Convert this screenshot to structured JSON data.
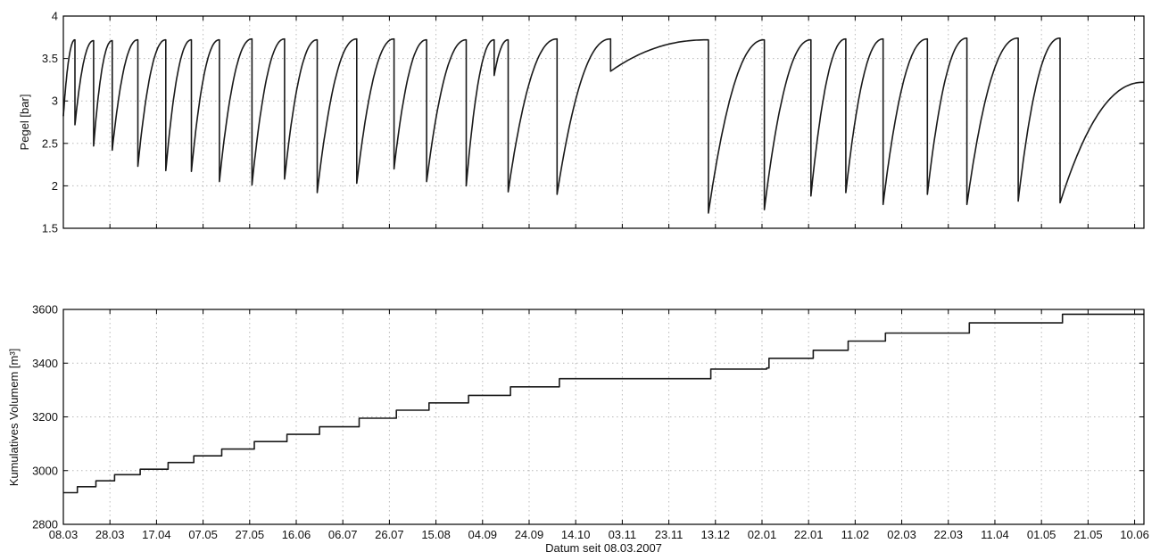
{
  "chart_data": [
    {
      "type": "line",
      "ylabel": "Pegel [bar]",
      "xlabel": "",
      "ylim": [
        1.5,
        4
      ],
      "yticks": [
        "1.5",
        "2",
        "2.5",
        "3",
        "3.5",
        "4"
      ],
      "xlim": [
        "08.03.2007",
        "14.06.2008"
      ],
      "xticks": [],
      "grid": true,
      "series": [
        {
          "cycles": [
            [
              "08.03.2007",
              2.82,
              "13.03.2007",
              3.72
            ],
            [
              "13.03.2007",
              2.72,
              "21.03.2007",
              3.71
            ],
            [
              "21.03.2007",
              2.47,
              "29.03.2007",
              3.71
            ],
            [
              "29.03.2007",
              2.42,
              "09.04.2007",
              3.72
            ],
            [
              "09.04.2007",
              2.23,
              "21.04.2007",
              3.72
            ],
            [
              "21.04.2007",
              2.18,
              "02.05.2007",
              3.72
            ],
            [
              "02.05.2007",
              2.17,
              "14.05.2007",
              3.72
            ],
            [
              "14.05.2007",
              2.05,
              "28.05.2007",
              3.73
            ],
            [
              "28.05.2007",
              2.01,
              "11.06.2007",
              3.73
            ],
            [
              "11.06.2007",
              2.08,
              "25.06.2007",
              3.72
            ],
            [
              "25.06.2007",
              1.92,
              "12.07.2007",
              3.73
            ],
            [
              "12.07.2007",
              2.03,
              "28.07.2007",
              3.73
            ],
            [
              "28.07.2007",
              2.2,
              "11.08.2007",
              3.72
            ],
            [
              "11.08.2007",
              2.05,
              "28.08.2007",
              3.72
            ],
            [
              "28.08.2007",
              2.0,
              "09.09.2007",
              3.72
            ],
            [
              "09.09.2007",
              3.3,
              "15.09.2007",
              3.72
            ],
            [
              "15.09.2007",
              1.93,
              "06.10.2007",
              3.73
            ],
            [
              "06.10.2007",
              1.9,
              "29.10.2007",
              3.73
            ],
            [
              "29.10.2007",
              3.35,
              "10.12.2007",
              3.72
            ],
            [
              "10.12.2007",
              1.68,
              "03.01.2008",
              3.72
            ],
            [
              "03.01.2008",
              1.72,
              "23.01.2008",
              3.72
            ],
            [
              "23.01.2008",
              1.88,
              "07.02.2008",
              3.73
            ],
            [
              "07.02.2008",
              1.92,
              "23.02.2008",
              3.73
            ],
            [
              "23.02.2008",
              1.78,
              "13.03.2008",
              3.73
            ],
            [
              "13.03.2008",
              1.9,
              "30.03.2008",
              3.74
            ],
            [
              "30.03.2008",
              1.78,
              "21.04.2008",
              3.74
            ],
            [
              "21.04.2008",
              1.82,
              "09.05.2008",
              3.74
            ],
            [
              "09.05.2008",
              1.8,
              "14.06.2008",
              3.22
            ]
          ]
        }
      ]
    },
    {
      "type": "line",
      "ylabel": "Kumulatives Volumem [m³]",
      "xlabel": "Datum seit 08.03.2007",
      "ylim": [
        2800,
        3600
      ],
      "yticks": [
        "2800",
        "3000",
        "3200",
        "3400",
        "3600"
      ],
      "xlim": [
        "08.03.2007",
        "14.06.2008"
      ],
      "xticks": [
        "08.03",
        "28.03",
        "17.04",
        "07.05",
        "27.05",
        "16.06",
        "06.07",
        "26.07",
        "15.08",
        "04.09",
        "24.09",
        "14.10",
        "03.11",
        "23.11",
        "13.12",
        "02.01",
        "22.01",
        "11.02",
        "02.03",
        "22.03",
        "11.04",
        "01.05",
        "21.05",
        "10.06"
      ],
      "grid": true,
      "series": [
        {
          "steps": [
            [
              "08.03.2007",
              2918
            ],
            [
              "14.03.2007",
              2940
            ],
            [
              "22.03.2007",
              2962
            ],
            [
              "30.03.2007",
              2985
            ],
            [
              "10.04.2007",
              3005
            ],
            [
              "22.04.2007",
              3030
            ],
            [
              "03.05.2007",
              3055
            ],
            [
              "15.05.2007",
              3080
            ],
            [
              "29.05.2007",
              3108
            ],
            [
              "12.06.2007",
              3135
            ],
            [
              "26.06.2007",
              3163
            ],
            [
              "13.07.2007",
              3195
            ],
            [
              "29.07.2007",
              3225
            ],
            [
              "12.08.2007",
              3252
            ],
            [
              "29.08.2007",
              3280
            ],
            [
              "16.09.2007",
              3312
            ],
            [
              "07.10.2007",
              3342
            ],
            [
              "11.12.2007",
              3378
            ],
            [
              "04.01.2008",
              3382
            ],
            [
              "05.01.2008",
              3418
            ],
            [
              "24.01.2008",
              3448
            ],
            [
              "08.02.2008",
              3482
            ],
            [
              "24.02.2008",
              3512
            ],
            [
              "31.03.2008",
              3550
            ],
            [
              "10.05.2008",
              3582
            ],
            [
              "14.06.2008",
              3582
            ]
          ]
        }
      ]
    }
  ]
}
